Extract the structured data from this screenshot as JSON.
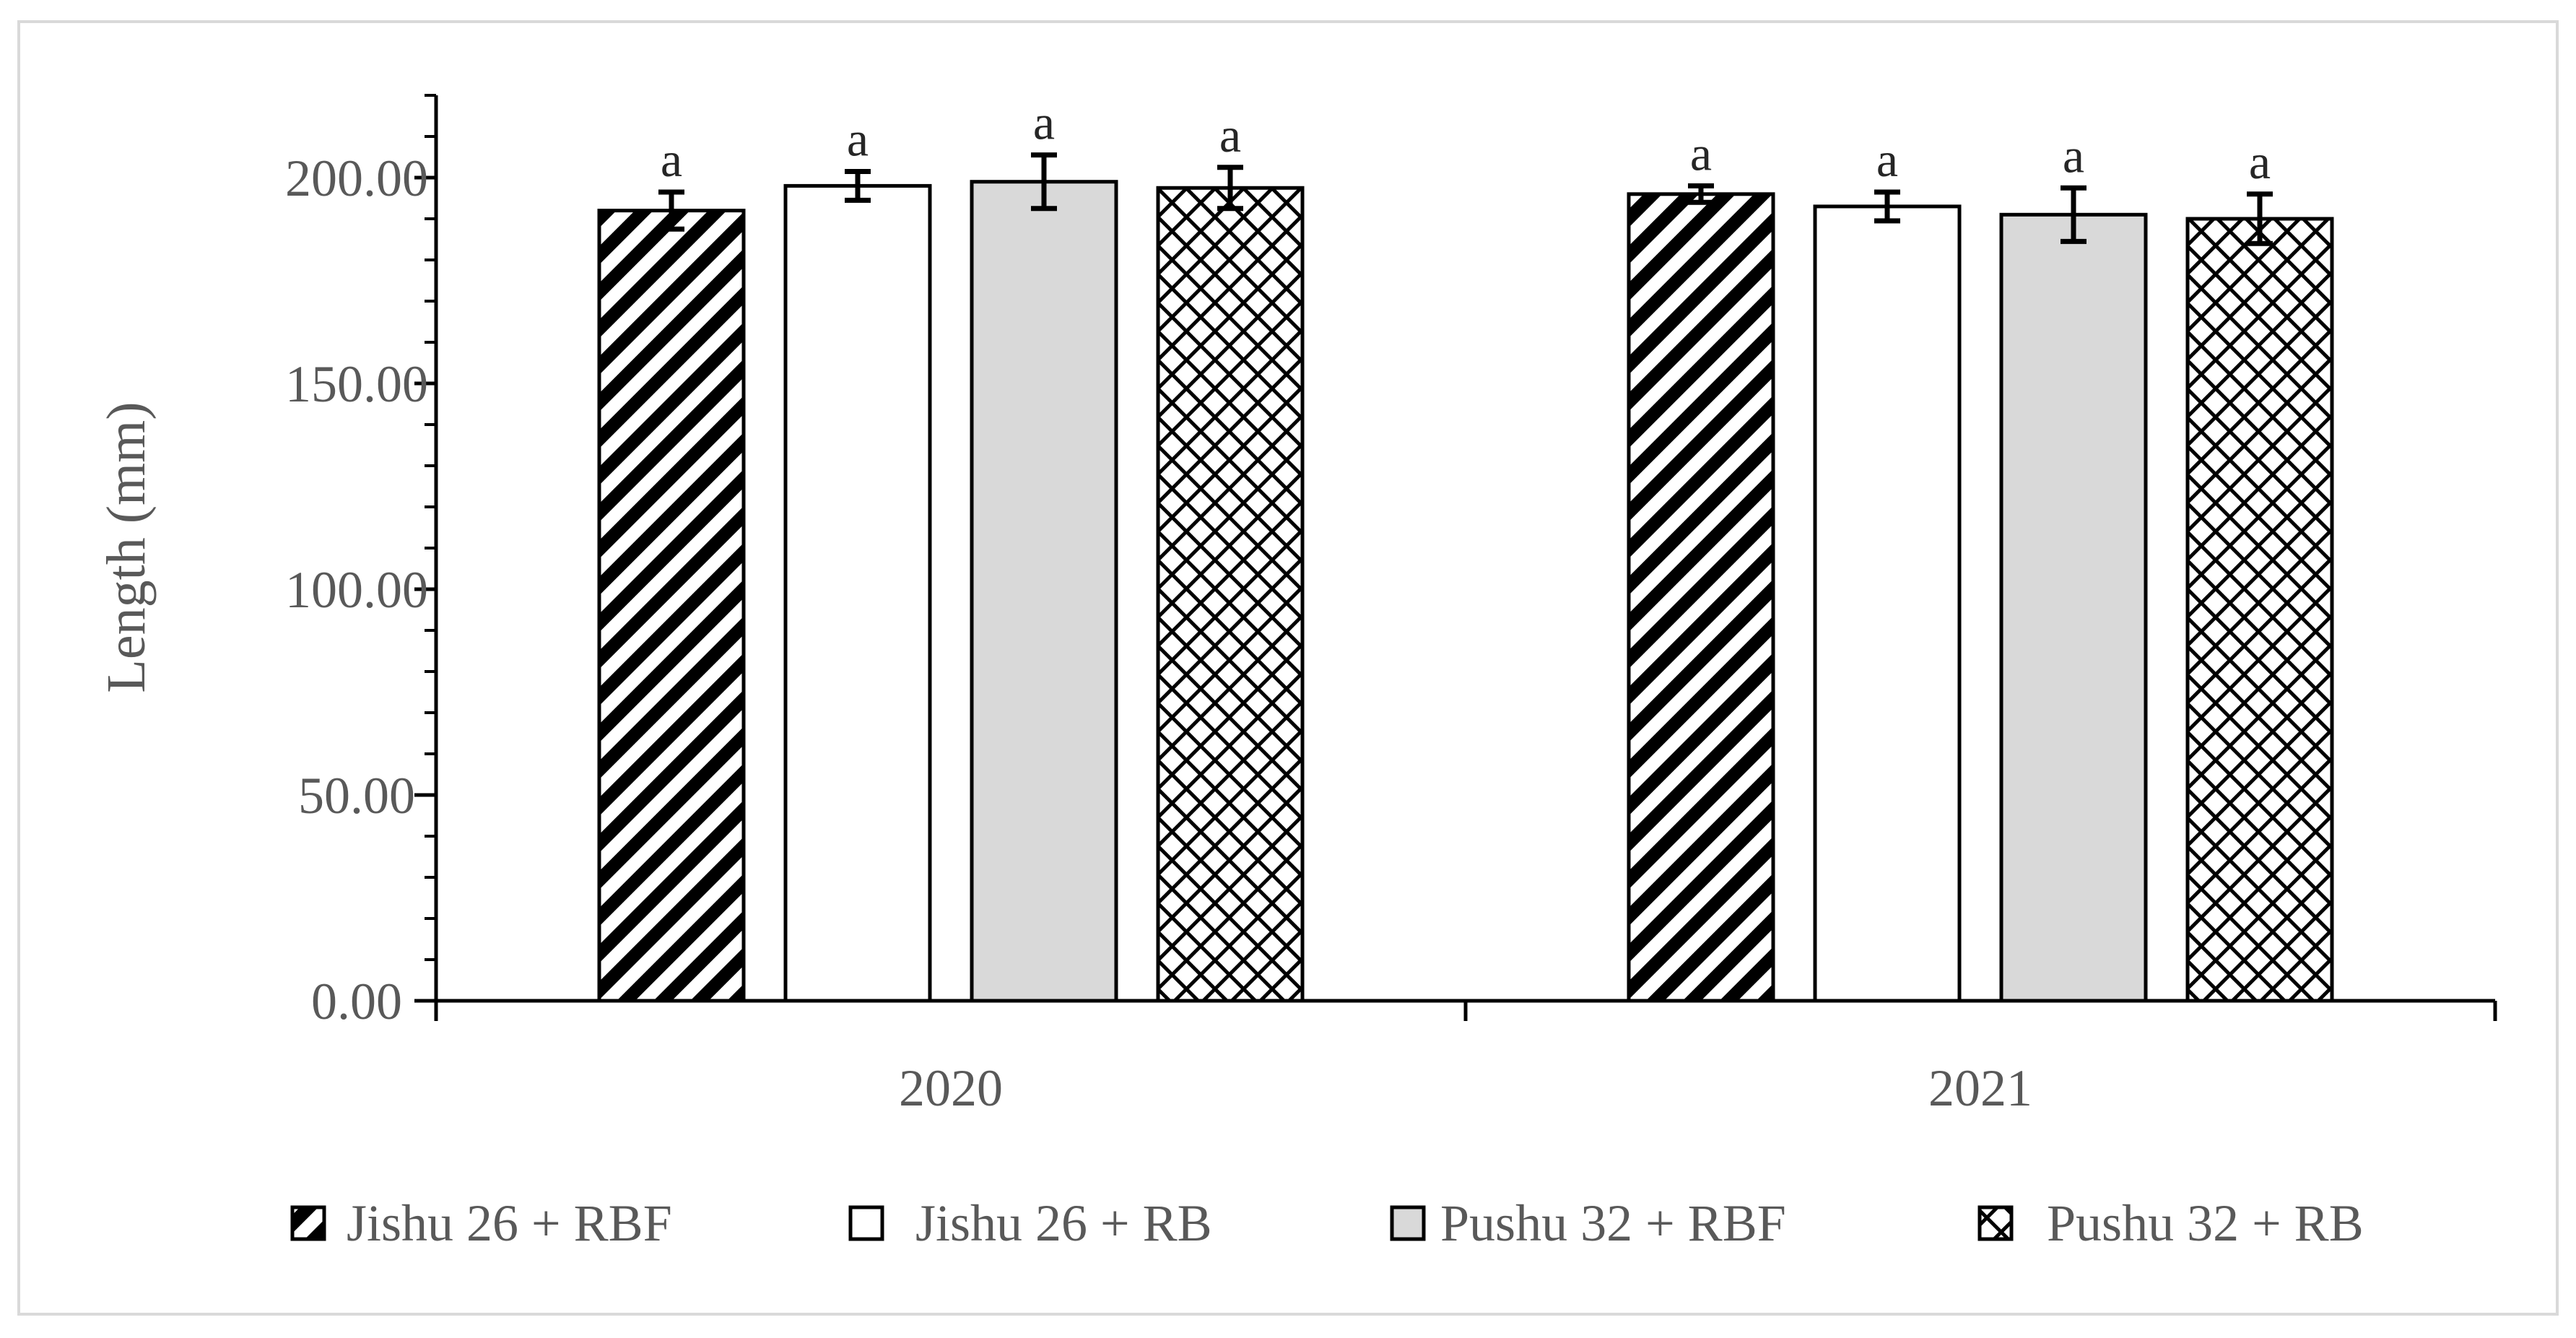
{
  "chart_data": {
    "type": "bar",
    "title": "",
    "xlabel": "",
    "ylabel": "Length (mm)",
    "ylim": [
      0,
      220
    ],
    "y_ticks": [
      "0.00",
      "50.00",
      "100.00",
      "150.00",
      "200.00"
    ],
    "y_tick_values": [
      0,
      50,
      100,
      150,
      200
    ],
    "categories": [
      "2020",
      "2021"
    ],
    "series": [
      {
        "name": "Jishu 26 + RBF",
        "pattern": "diagonal",
        "fill": "#000000",
        "values": [
          192,
          196
        ],
        "errors": [
          4.5,
          2
        ],
        "significance": [
          "a",
          "a"
        ]
      },
      {
        "name": "Jishu 26 + RB",
        "pattern": "solid",
        "fill": "#ffffff",
        "values": [
          198,
          193
        ],
        "errors": [
          3.5,
          3.5
        ],
        "significance": [
          "a",
          "a"
        ]
      },
      {
        "name": "Pushu 32 + RBF",
        "pattern": "solid",
        "fill": "#d9d9d9",
        "values": [
          199,
          191
        ],
        "errors": [
          6.5,
          6.5
        ],
        "significance": [
          "a",
          "a"
        ]
      },
      {
        "name": "Pushu 32 + RB",
        "pattern": "crosshatch",
        "fill": "#000000",
        "values": [
          197.5,
          190
        ],
        "errors": [
          5,
          6
        ],
        "significance": [
          "a",
          "a"
        ]
      }
    ],
    "grid": false,
    "legend_position": "bottom"
  },
  "colors": {
    "axis": "#000000",
    "text": "#595959",
    "gray_bar": "#d9d9d9",
    "frame": "#d9d9d9"
  }
}
